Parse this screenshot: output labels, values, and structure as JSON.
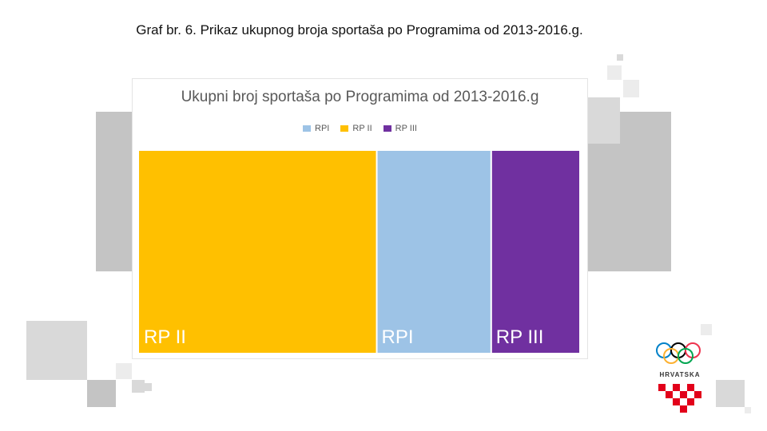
{
  "slide": {
    "title": "Graf br. 6. Prikaz ukupnog broja sportaša po Programima od 2013-2016.g."
  },
  "chart_data": {
    "type": "treemap",
    "title": "Ukupni broj sportaša po Programima od 2013-2016.g",
    "legend": {
      "position": "top"
    },
    "series": [
      {
        "name": "RP II",
        "value": 54,
        "color": "#FFC000"
      },
      {
        "name": "RPI",
        "value": 26,
        "color": "#9DC3E6"
      },
      {
        "name": "RP III",
        "value": 20,
        "color": "#7030A0"
      }
    ],
    "legend_order": [
      "RPI",
      "RP II",
      "RP III"
    ]
  },
  "logo": {
    "text": "HRVATSKA",
    "ring_colors": [
      "#0081C8",
      "#FCB131",
      "#000000",
      "#00A651",
      "#EE334E"
    ],
    "checker_color": "#E2001A"
  }
}
